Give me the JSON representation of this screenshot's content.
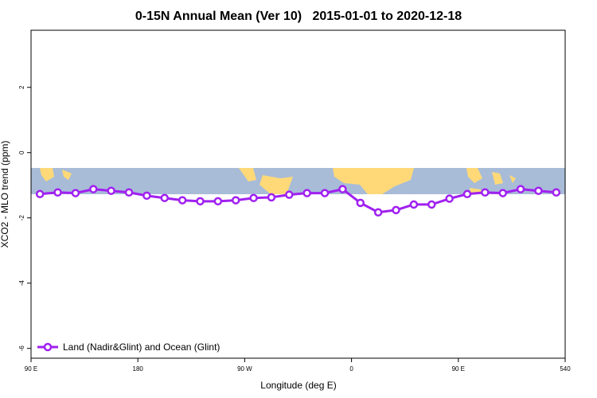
{
  "chart_data": {
    "type": "line",
    "title": "0-15N Annual Mean (Ver 10)   2015-01-01 to 2020-12-18",
    "x_label": "Longitude (deg E)",
    "y_label": "XCO2 - MLO trend (ppm)",
    "xlim": [
      90,
      540
    ],
    "xticks": [
      {
        "value": 90,
        "label": "90 E"
      },
      180,
      {
        "value": 270,
        "label": "90 W"
      },
      {
        "value": 360,
        "label": "0"
      },
      {
        "value": 450,
        "label": "90 E"
      },
      540
    ],
    "ylim": [
      -6.3,
      3.75
    ],
    "yticks": [
      -6,
      -4,
      -2,
      0,
      2
    ],
    "legend": "bottomleft",
    "series": [
      {
        "name": "Land (Nadir&Glint) and Ocean (Glint)",
        "color": "#a020f0",
        "x": [
          97.5,
          112.5,
          127.5,
          142.5,
          157.5,
          172.5,
          187.5,
          202.5,
          217.5,
          232.5,
          247.5,
          262.5,
          277.5,
          292.5,
          307.5,
          322.5,
          337.5,
          352.5,
          367.5,
          382.5,
          397.5,
          412.5,
          427.5,
          442.5,
          457.5,
          472.5,
          487.5,
          502.5,
          517.5,
          532.5
        ],
        "values": [
          -1.27,
          -1.22,
          -1.24,
          -1.12,
          -1.17,
          -1.22,
          -1.32,
          -1.39,
          -1.46,
          -1.49,
          -1.49,
          -1.46,
          -1.39,
          -1.37,
          -1.29,
          -1.24,
          -1.24,
          -1.12,
          -1.54,
          -1.83,
          -1.76,
          -1.59,
          -1.59,
          -1.41,
          -1.27,
          -1.22,
          -1.24,
          -1.12,
          -1.17,
          -1.22
        ]
      }
    ]
  }
}
